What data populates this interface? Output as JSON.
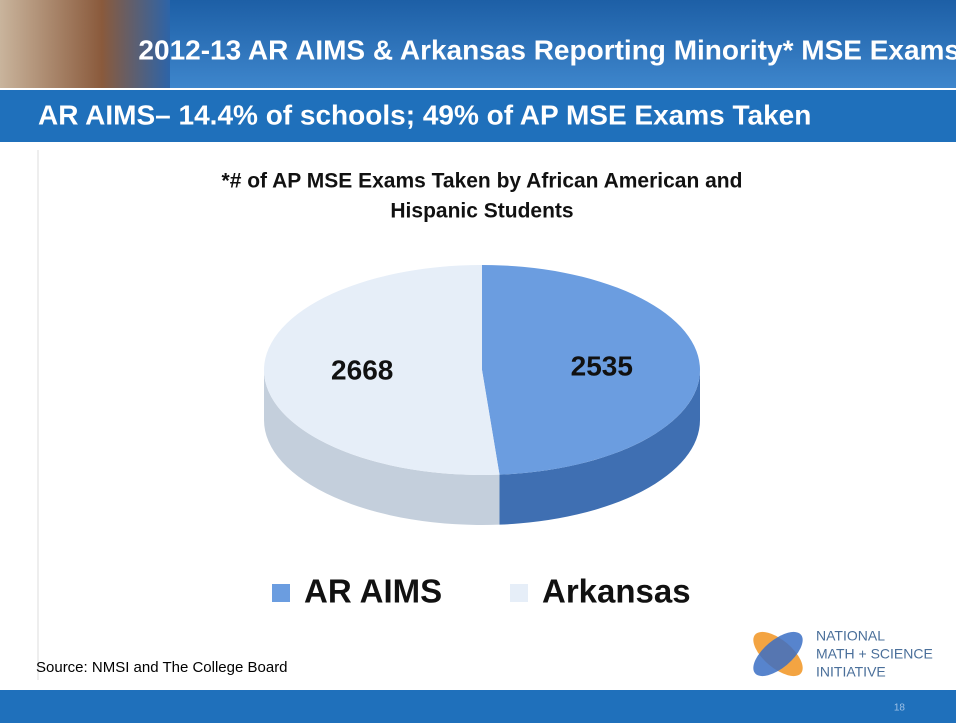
{
  "header": {
    "title": "2012-13 AR AIMS & Arkansas Reporting Minority* MSE Exams",
    "subtitle": "AR AIMS– 14.4% of schools; 49% of AP MSE Exams Taken"
  },
  "chart_data": {
    "type": "pie",
    "title": [
      "*# of AP MSE Exams Taken by African American and",
      "Hispanic Students"
    ],
    "categories": [
      "AR AIMS",
      "Arkansas"
    ],
    "values": [
      2535,
      2668
    ],
    "colors": [
      "#6b9de0",
      "#e6eef8"
    ],
    "side_colors": [
      "#3f6fb2",
      "#c4cfdc"
    ],
    "legend": "bottom"
  },
  "footer": {
    "source": "Source: NMSI and The College Board",
    "logo": [
      "NATIONAL",
      "MATH + SCIENCE",
      "INITIATIVE"
    ],
    "page": "18"
  }
}
